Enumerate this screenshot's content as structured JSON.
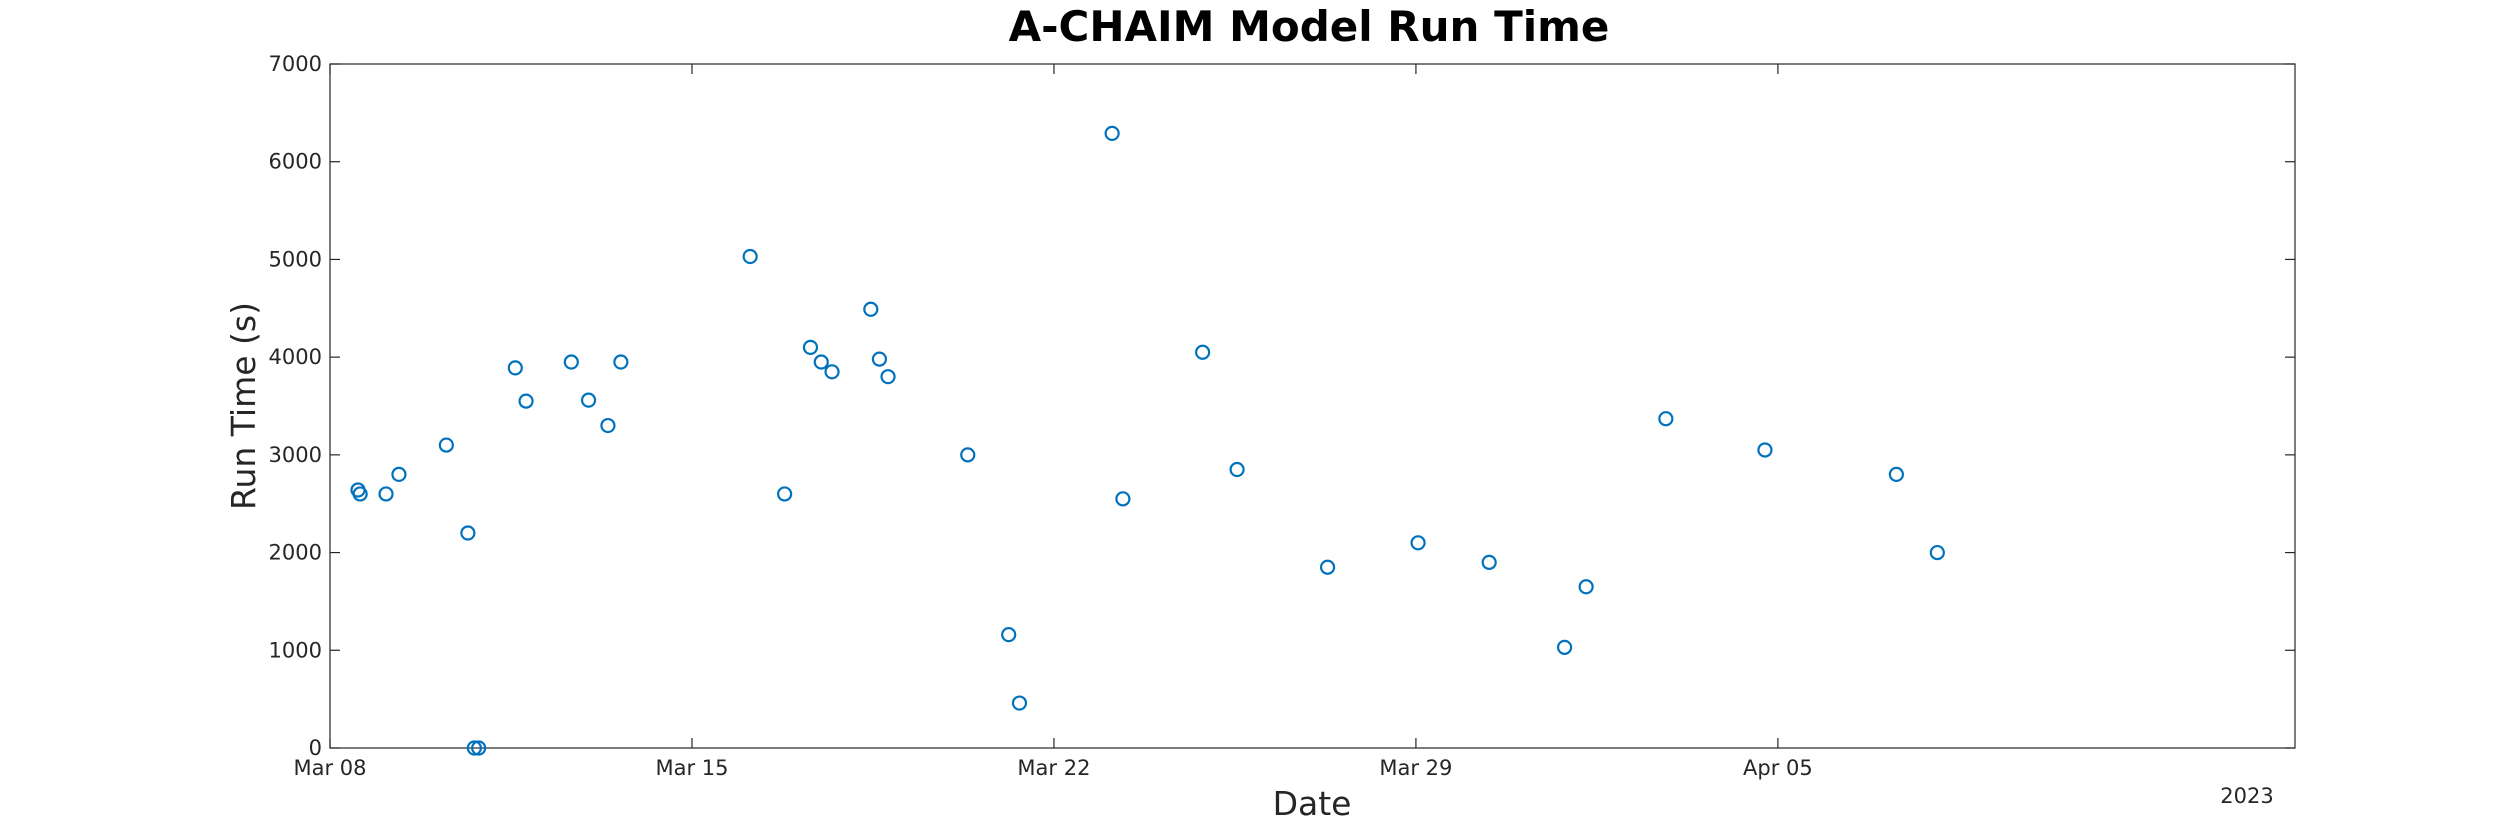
{
  "chart_data": {
    "type": "scatter",
    "title": "A-CHAIM Model Run Time",
    "xlabel": "Date",
    "ylabel": "Run Time (s)",
    "x_axis_kind": "date",
    "xlim": [
      "2023-03-08",
      "2023-04-15"
    ],
    "ylim": [
      0,
      7000
    ],
    "x_ticks": [
      "Mar 08",
      "Mar 15",
      "Mar 22",
      "Mar 29",
      "Apr 05"
    ],
    "x_tick_dates": [
      "2023-03-08",
      "2023-03-15",
      "2023-03-22",
      "2023-03-29",
      "2023-04-05"
    ],
    "x_secondary_label": "2023",
    "y_ticks": [
      "0",
      "1000",
      "2000",
      "3000",
      "4000",
      "5000",
      "6000",
      "7000"
    ],
    "y_tick_values": [
      0,
      1000,
      2000,
      3000,
      4000,
      5000,
      6000,
      7000
    ],
    "grid": false,
    "marker": "open-circle",
    "marker_color": "#0072BD",
    "series": [
      {
        "x": [
          "2023-03-08 13:00",
          "2023-03-08 14:00",
          "2023-03-10 19:00",
          "2023-03-10 21:00",
          "2023-03-23 03:00",
          "2023-03-16 03:00",
          "2023-03-24 21:00",
          "2023-03-21 03:00",
          "2023-03-21 08:00",
          "2023-03-31 21:00",
          "2023-04-02 20:00",
          "2023-03-18 11:00",
          "2023-03-18 15:00",
          "2023-03-18 19:00",
          "2023-03-17 07:00",
          "2023-03-17 12:00",
          "2023-03-17 17:00",
          "2023-03-12 16:00",
          "2023-03-13 00:00",
          "2023-03-13 15:00",
          "2023-03-11 14:00",
          "2023-03-11 19:00",
          "2023-03-09 02:00",
          "2023-03-09 08:00",
          "2023-03-10 06:00",
          "2023-03-10 16:00",
          "2023-03-13 09:00",
          "2023-03-16 19:00",
          "2023-03-20 08:00",
          "2023-03-23 08:00",
          "2023-03-25 13:00",
          "2023-03-27 07:00",
          "2023-03-29 01:00",
          "2023-03-30 10:00",
          "2023-04-01 07:00",
          "2023-04-04 18:00",
          "2023-04-07 07:00",
          "2023-04-08 02:00"
        ],
        "y": [
          2640,
          2600,
          0,
          0,
          6290,
          5030,
          4050,
          1160,
          460,
          1030,
          3370,
          4490,
          3980,
          3800,
          4100,
          3950,
          3850,
          3950,
          3560,
          3950,
          3890,
          3550,
          2600,
          2800,
          3100,
          2200,
          3300,
          2600,
          3000,
          2550,
          2850,
          1850,
          2100,
          1900,
          1650,
          3050,
          2800,
          2000
        ]
      }
    ]
  }
}
